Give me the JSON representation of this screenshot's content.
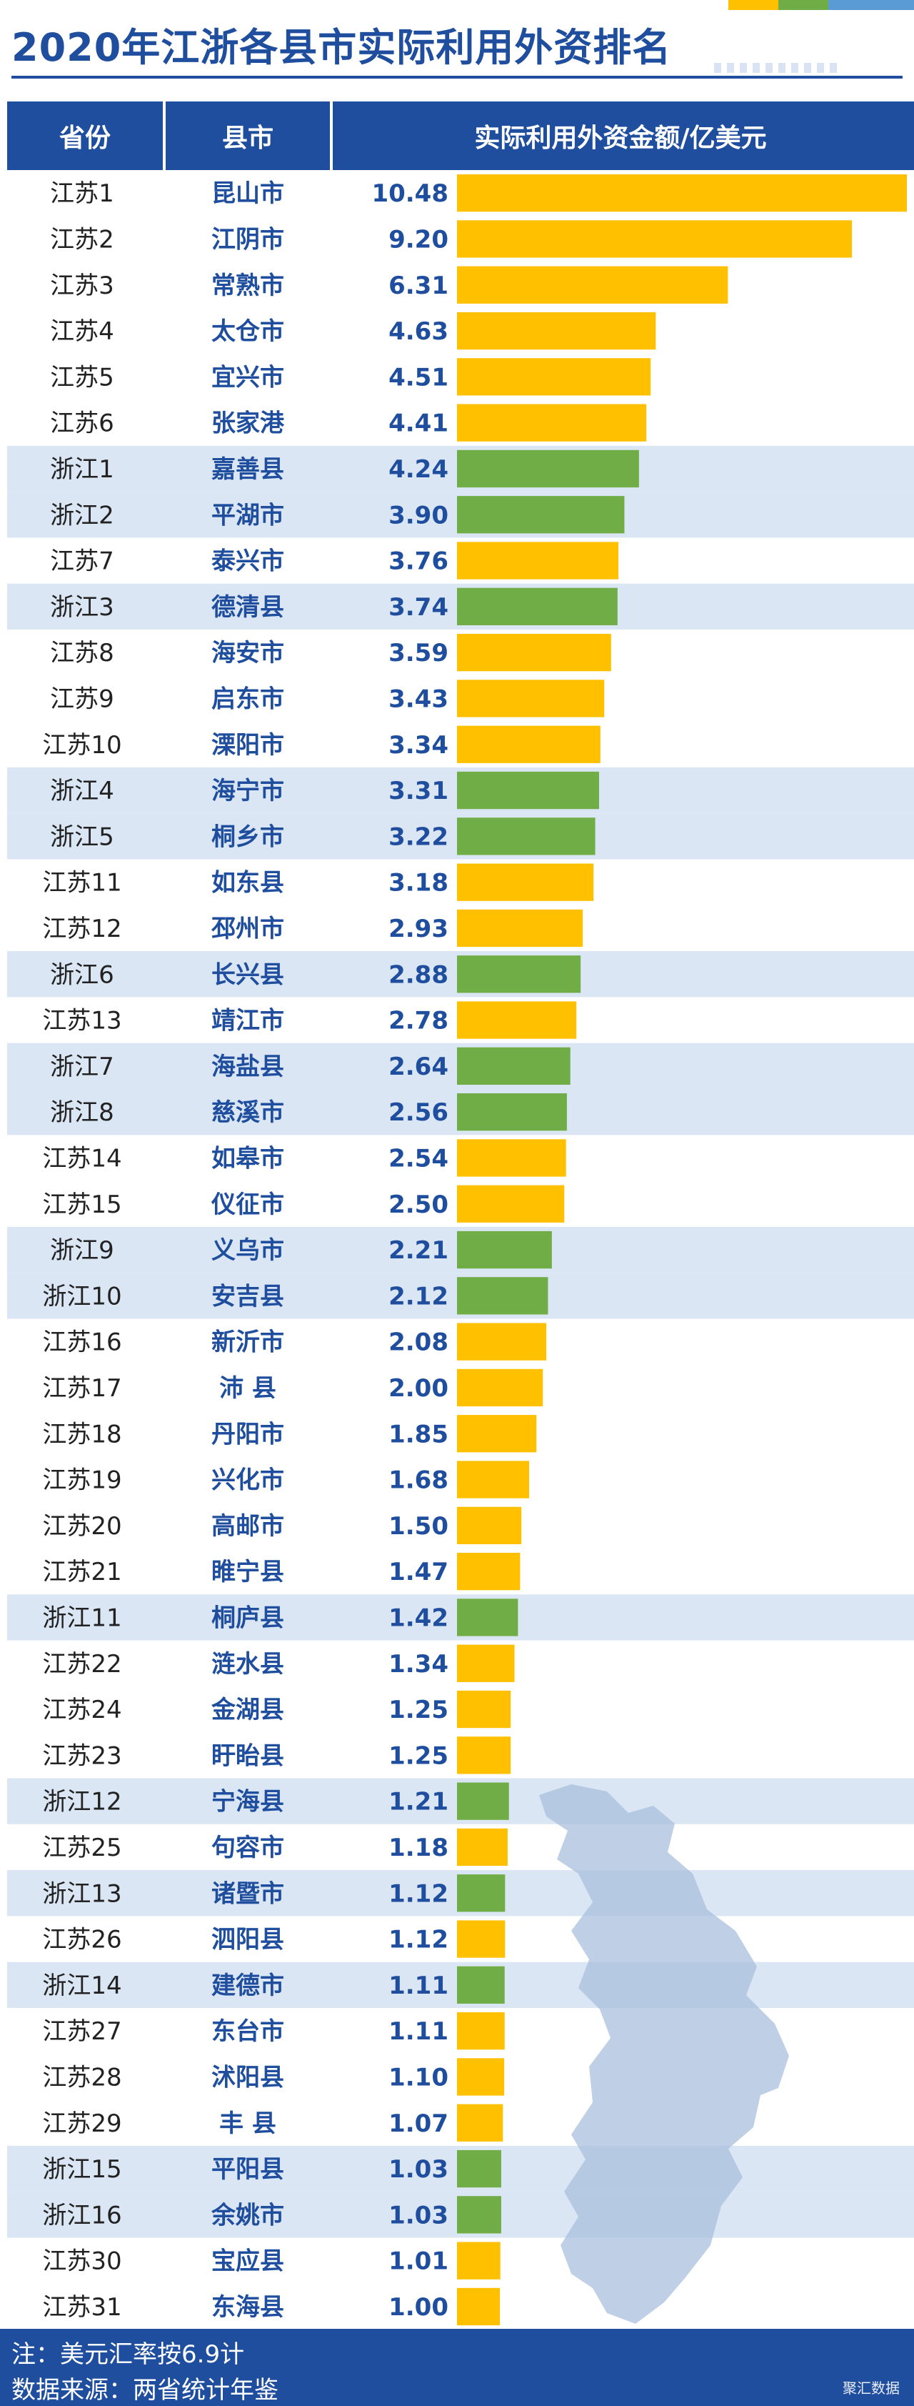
{
  "title": "2020年江浙各县市实际利用外资排名",
  "colors": {
    "jiangsu": "#ffc000",
    "zhejiang": "#70ad47",
    "header": "#1f4e9e",
    "title_text": "#1f4e9e",
    "zhejiang_row_bg": "#dbe6f4",
    "map": "#a9bfdc",
    "strip": [
      "#ffc000",
      "#70ad47",
      "#5b9bd5"
    ]
  },
  "table_headers": {
    "province": "省份",
    "county": "县市",
    "value": "实际利用外资金额/亿美元"
  },
  "chart_data": {
    "type": "bar",
    "orientation": "horizontal",
    "title": "2020年江浙各县市实际利用外资排名",
    "xlabel": "",
    "ylabel": "实际利用外资金额/亿美元",
    "xlim": [
      0,
      10.48
    ],
    "rows": [
      {
        "rank_label": "江苏1",
        "province": "jiangsu",
        "county": "昆山市",
        "value": 10.48
      },
      {
        "rank_label": "江苏2",
        "province": "jiangsu",
        "county": "江阴市",
        "value": 9.2
      },
      {
        "rank_label": "江苏3",
        "province": "jiangsu",
        "county": "常熟市",
        "value": 6.31
      },
      {
        "rank_label": "江苏4",
        "province": "jiangsu",
        "county": "太仓市",
        "value": 4.63
      },
      {
        "rank_label": "江苏5",
        "province": "jiangsu",
        "county": "宜兴市",
        "value": 4.51
      },
      {
        "rank_label": "江苏6",
        "province": "jiangsu",
        "county": "张家港",
        "value": 4.41
      },
      {
        "rank_label": "浙江1",
        "province": "zhejiang",
        "county": "嘉善县",
        "value": 4.24
      },
      {
        "rank_label": "浙江2",
        "province": "zhejiang",
        "county": "平湖市",
        "value": 3.9
      },
      {
        "rank_label": "江苏7",
        "province": "jiangsu",
        "county": "泰兴市",
        "value": 3.76
      },
      {
        "rank_label": "浙江3",
        "province": "zhejiang",
        "county": "德清县",
        "value": 3.74
      },
      {
        "rank_label": "江苏8",
        "province": "jiangsu",
        "county": "海安市",
        "value": 3.59
      },
      {
        "rank_label": "江苏9",
        "province": "jiangsu",
        "county": "启东市",
        "value": 3.43
      },
      {
        "rank_label": "江苏10",
        "province": "jiangsu",
        "county": "溧阳市",
        "value": 3.34
      },
      {
        "rank_label": "浙江4",
        "province": "zhejiang",
        "county": "海宁市",
        "value": 3.31
      },
      {
        "rank_label": "浙江5",
        "province": "zhejiang",
        "county": "桐乡市",
        "value": 3.22
      },
      {
        "rank_label": "江苏11",
        "province": "jiangsu",
        "county": "如东县",
        "value": 3.18
      },
      {
        "rank_label": "江苏12",
        "province": "jiangsu",
        "county": "邳州市",
        "value": 2.93
      },
      {
        "rank_label": "浙江6",
        "province": "zhejiang",
        "county": "长兴县",
        "value": 2.88
      },
      {
        "rank_label": "江苏13",
        "province": "jiangsu",
        "county": "靖江市",
        "value": 2.78
      },
      {
        "rank_label": "浙江7",
        "province": "zhejiang",
        "county": "海盐县",
        "value": 2.64
      },
      {
        "rank_label": "浙江8",
        "province": "zhejiang",
        "county": "慈溪市",
        "value": 2.56
      },
      {
        "rank_label": "江苏14",
        "province": "jiangsu",
        "county": "如皋市",
        "value": 2.54
      },
      {
        "rank_label": "江苏15",
        "province": "jiangsu",
        "county": "仪征市",
        "value": 2.5
      },
      {
        "rank_label": "浙江9",
        "province": "zhejiang",
        "county": "义乌市",
        "value": 2.21
      },
      {
        "rank_label": "浙江10",
        "province": "zhejiang",
        "county": "安吉县",
        "value": 2.12
      },
      {
        "rank_label": "江苏16",
        "province": "jiangsu",
        "county": "新沂市",
        "value": 2.08
      },
      {
        "rank_label": "江苏17",
        "province": "jiangsu",
        "county": "沛 县",
        "value": 2.0
      },
      {
        "rank_label": "江苏18",
        "province": "jiangsu",
        "county": "丹阳市",
        "value": 1.85
      },
      {
        "rank_label": "江苏19",
        "province": "jiangsu",
        "county": "兴化市",
        "value": 1.68
      },
      {
        "rank_label": "江苏20",
        "province": "jiangsu",
        "county": "高邮市",
        "value": 1.5
      },
      {
        "rank_label": "江苏21",
        "province": "jiangsu",
        "county": "睢宁县",
        "value": 1.47
      },
      {
        "rank_label": "浙江11",
        "province": "zhejiang",
        "county": "桐庐县",
        "value": 1.42
      },
      {
        "rank_label": "江苏22",
        "province": "jiangsu",
        "county": "涟水县",
        "value": 1.34
      },
      {
        "rank_label": "江苏24",
        "province": "jiangsu",
        "county": "金湖县",
        "value": 1.25
      },
      {
        "rank_label": "江苏23",
        "province": "jiangsu",
        "county": "盱眙县",
        "value": 1.25
      },
      {
        "rank_label": "浙江12",
        "province": "zhejiang",
        "county": "宁海县",
        "value": 1.21
      },
      {
        "rank_label": "江苏25",
        "province": "jiangsu",
        "county": "句容市",
        "value": 1.18
      },
      {
        "rank_label": "浙江13",
        "province": "zhejiang",
        "county": "诸暨市",
        "value": 1.12
      },
      {
        "rank_label": "江苏26",
        "province": "jiangsu",
        "county": "泗阳县",
        "value": 1.12
      },
      {
        "rank_label": "浙江14",
        "province": "zhejiang",
        "county": "建德市",
        "value": 1.11
      },
      {
        "rank_label": "江苏27",
        "province": "jiangsu",
        "county": "东台市",
        "value": 1.11
      },
      {
        "rank_label": "江苏28",
        "province": "jiangsu",
        "county": "沭阳县",
        "value": 1.1
      },
      {
        "rank_label": "江苏29",
        "province": "jiangsu",
        "county": "丰 县",
        "value": 1.07
      },
      {
        "rank_label": "浙江15",
        "province": "zhejiang",
        "county": "平阳县",
        "value": 1.03
      },
      {
        "rank_label": "浙江16",
        "province": "zhejiang",
        "county": "余姚市",
        "value": 1.03
      },
      {
        "rank_label": "江苏30",
        "province": "jiangsu",
        "county": "宝应县",
        "value": 1.01
      },
      {
        "rank_label": "江苏31",
        "province": "jiangsu",
        "county": "东海县",
        "value": 1.0
      }
    ]
  },
  "footer": {
    "note": "注：美元汇率按6.9计",
    "source": "数据来源：两省统计年鉴",
    "brand": "聚汇数据"
  }
}
